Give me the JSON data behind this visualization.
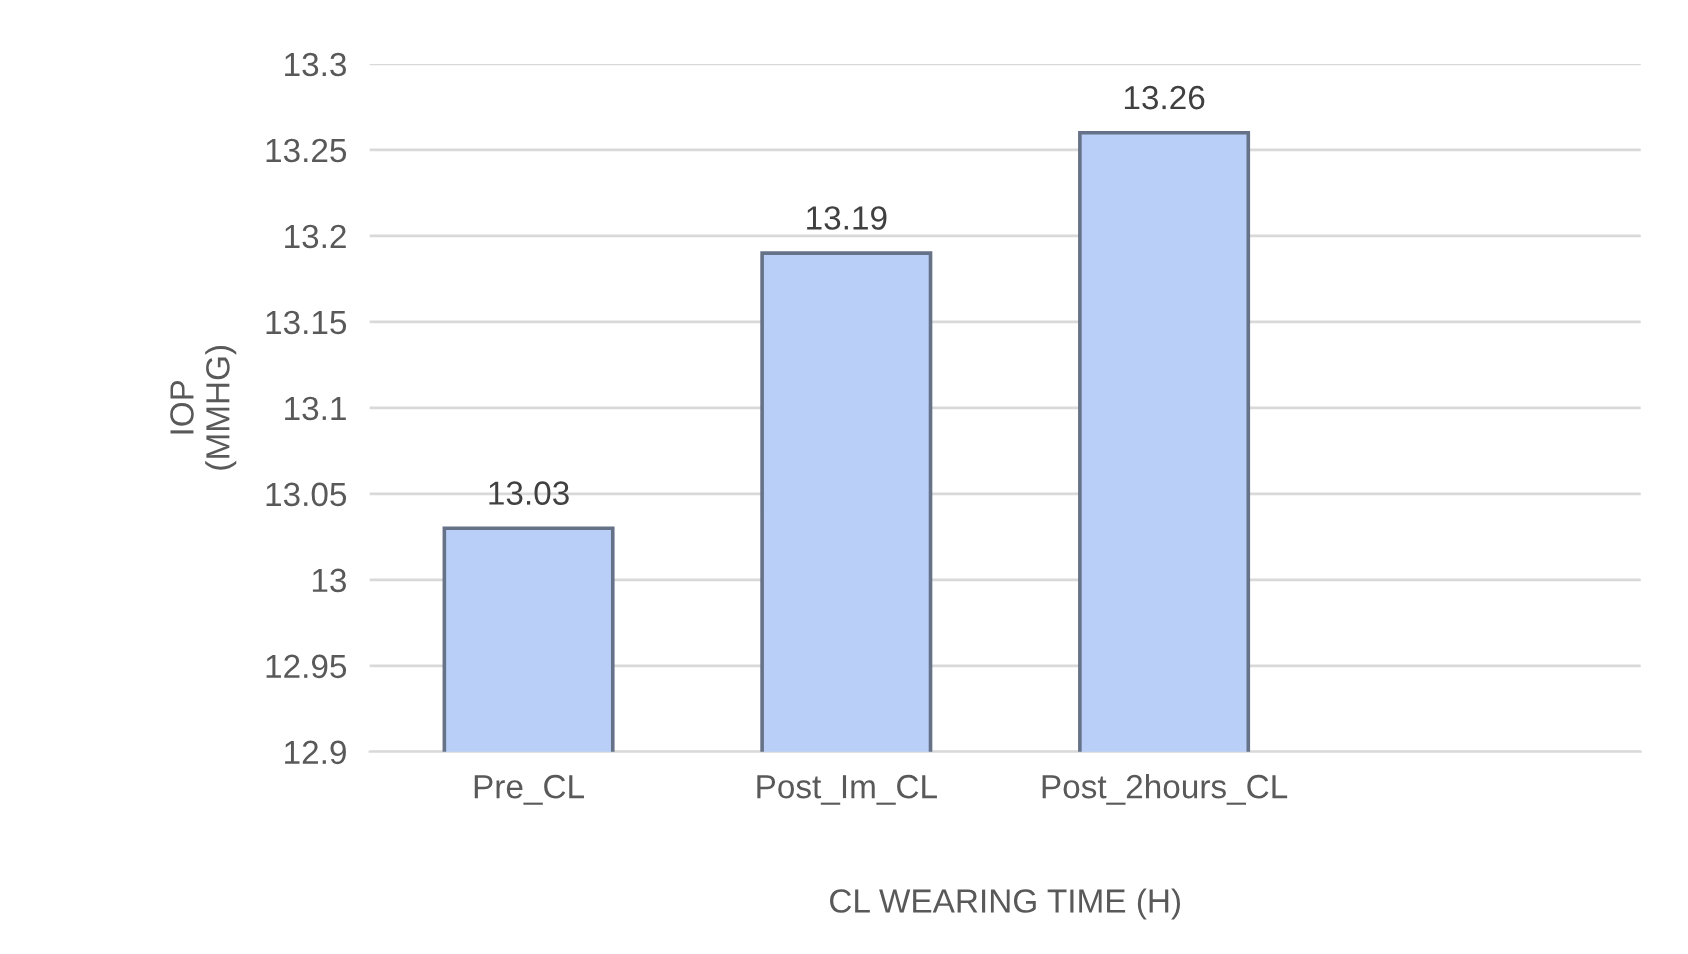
{
  "chart_data": {
    "type": "bar",
    "xlabel": "CL WEARING TIME (H)",
    "ylabel": "IOP\n(MMHG)",
    "categories": [
      "Pre_CL",
      "Post_Im_CL",
      "Post_2hours_CL",
      null
    ],
    "values": [
      13.03,
      13.19,
      13.26,
      null
    ],
    "color": "#b9cff7",
    "ylim": [
      12.9,
      13.3
    ],
    "yticks": [
      {
        "value": 12.9,
        "label": "12.9"
      },
      {
        "value": 12.95,
        "label": "12.95"
      },
      {
        "value": 13,
        "label": "13"
      },
      {
        "value": 13.05,
        "label": "13.05"
      },
      {
        "value": 13.1,
        "label": "13.1"
      },
      {
        "value": 13.15,
        "label": "13.15"
      },
      {
        "value": 13.2,
        "label": "13.2"
      },
      {
        "value": 13.25,
        "label": "13.25"
      },
      {
        "value": 13.3,
        "label": "13.3"
      }
    ],
    "grid": "y",
    "data_labels": true
  }
}
